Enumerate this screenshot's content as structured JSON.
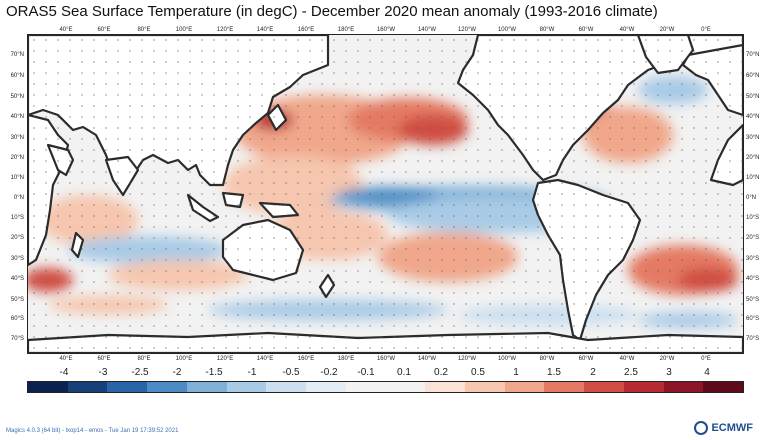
{
  "title": "ORAS5 Sea Surface Temperature (in degC) - December 2020 mean anomaly (1993-2016 climate)",
  "lon_labels": [
    "40°E",
    "60°E",
    "80°E",
    "100°E",
    "120°E",
    "140°E",
    "160°E",
    "180°E",
    "160°W",
    "140°W",
    "120°W",
    "100°W",
    "80°W",
    "60°W",
    "40°W",
    "20°W",
    "0°E"
  ],
  "lat_labels": [
    "70°N",
    "60°N",
    "50°N",
    "40°N",
    "30°N",
    "20°N",
    "10°N",
    "0°N",
    "10°S",
    "20°S",
    "30°S",
    "40°S",
    "50°S",
    "60°S",
    "70°S"
  ],
  "colorbar": {
    "labels": [
      "-4",
      "-3",
      "-2.5",
      "-2",
      "-1.5",
      "-1",
      "-0.5",
      "-0.2",
      "-0.1",
      "0.1",
      "0.2",
      "0.5",
      "1",
      "1.5",
      "2",
      "2.5",
      "3",
      "4"
    ],
    "colors": [
      "#0b2152",
      "#173f7a",
      "#2a64a8",
      "#4b8cc4",
      "#7fb0d8",
      "#a9cbe6",
      "#cbdff0",
      "#e2edf6",
      "#f2f2f2",
      "#f2f2f2",
      "#fae3d6",
      "#f6c6ae",
      "#f0a78b",
      "#e47a63",
      "#cf4d43",
      "#b72b32",
      "#8e1528",
      "#5e0a1b"
    ]
  },
  "footer": "Magics 4.0.3 (64 bit) - lxop14 - emos - Tue Jan 19 17:39:52 2021",
  "logo_text": "ECMWF"
}
